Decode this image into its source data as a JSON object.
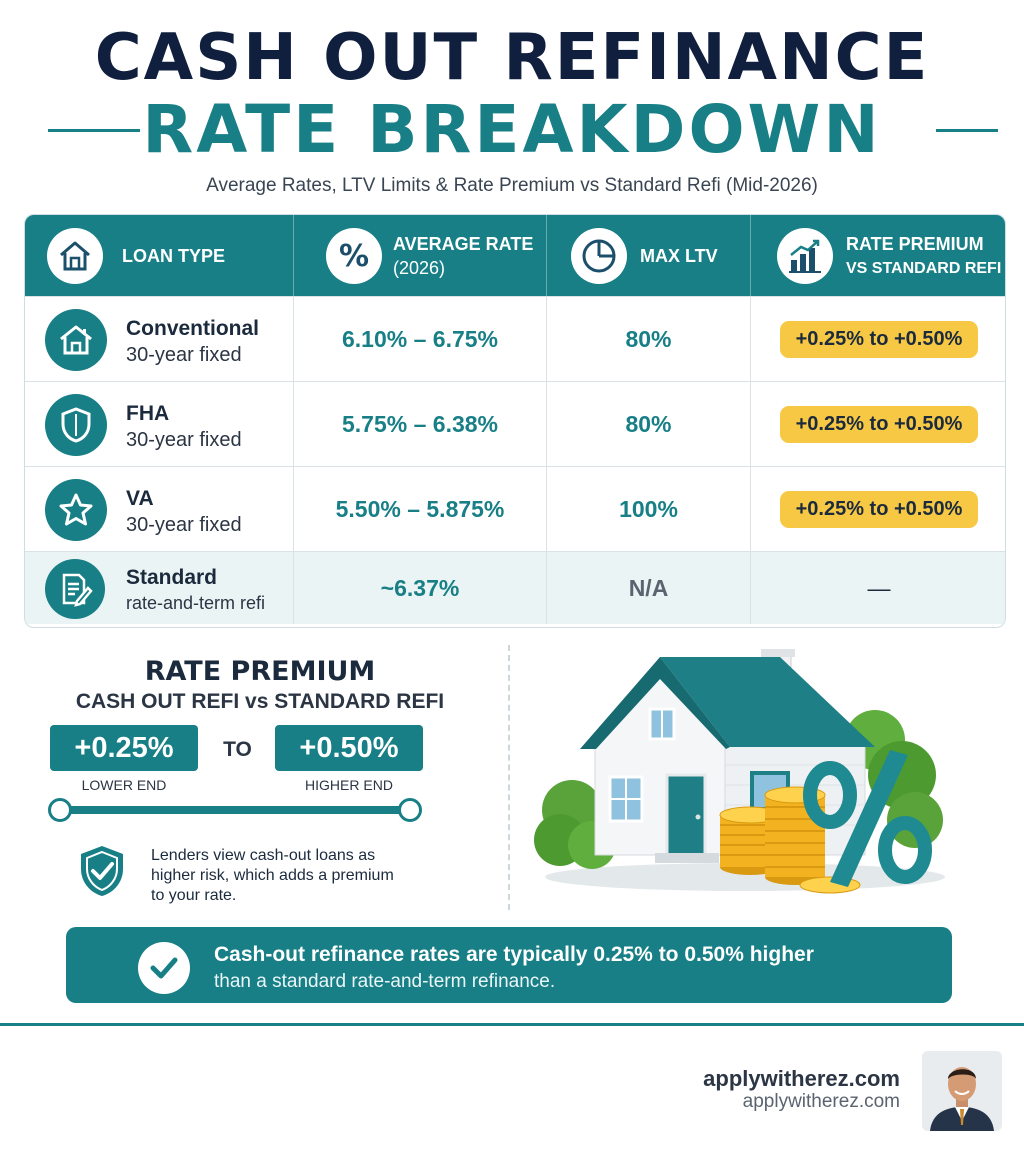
{
  "header": {
    "title_line1": "CASH OUT REFINANCE",
    "title_line2": "RATE BREAKDOWN",
    "subtitle": "Average Rates, LTV Limits & Rate Premium vs Standard Refi (Mid-2026)"
  },
  "table": {
    "columns": [
      {
        "label": "LOAN TYPE",
        "icon": "home-icon"
      },
      {
        "label_line1": "AVERAGE RATE",
        "label_line2": "(2026)",
        "icon": "percent-icon"
      },
      {
        "label": "MAX LTV",
        "icon": "pie-chart-icon"
      },
      {
        "label_line1": "RATE PREMIUM",
        "label_line2": "VS STANDARD REFI",
        "icon": "bar-chart-icon"
      }
    ],
    "rows": [
      {
        "name": "Conventional",
        "term": "30-year fixed",
        "rate": "6.10% – 6.75%",
        "ltv": "80%",
        "premium": "+0.25% to +0.50%",
        "icon": "house-icon"
      },
      {
        "name": "FHA",
        "term": "30-year fixed",
        "rate": "5.75% – 6.38%",
        "ltv": "80%",
        "premium": "+0.25% to +0.50%",
        "icon": "shield-icon"
      },
      {
        "name": "VA",
        "term": "30-year fixed",
        "rate": "5.50% – 5.875%",
        "ltv": "100%",
        "premium": "+0.25% to +0.50%",
        "icon": "star-icon"
      },
      {
        "name": "Standard",
        "term": "rate-and-term refi",
        "rate": "~6.37%",
        "ltv": "N/A",
        "premium": "—",
        "icon": "document-pen-icon"
      }
    ]
  },
  "rate_premium": {
    "title": "RATE PREMIUM",
    "subtitle": "CASH OUT REFI vs STANDARD REFI",
    "low_value": "+0.25%",
    "low_label": "LOWER END",
    "to": "TO",
    "high_value": "+0.50%",
    "high_label": "HIGHER END",
    "note": "Lenders view cash-out loans as higher risk, which adds a premium to your rate."
  },
  "banner": {
    "line1": "Cash-out refinance rates are typically 0.25% to 0.50% higher",
    "line2": "than a standard rate-and-term refinance."
  },
  "footer": {
    "brand": "applywitherez.com",
    "brand_sub": "applywitherez.com"
  },
  "colors": {
    "teal": "#177f85",
    "navy": "#0f1f3d",
    "gold": "#f7c843",
    "light_teal": "#eaf4f5"
  }
}
